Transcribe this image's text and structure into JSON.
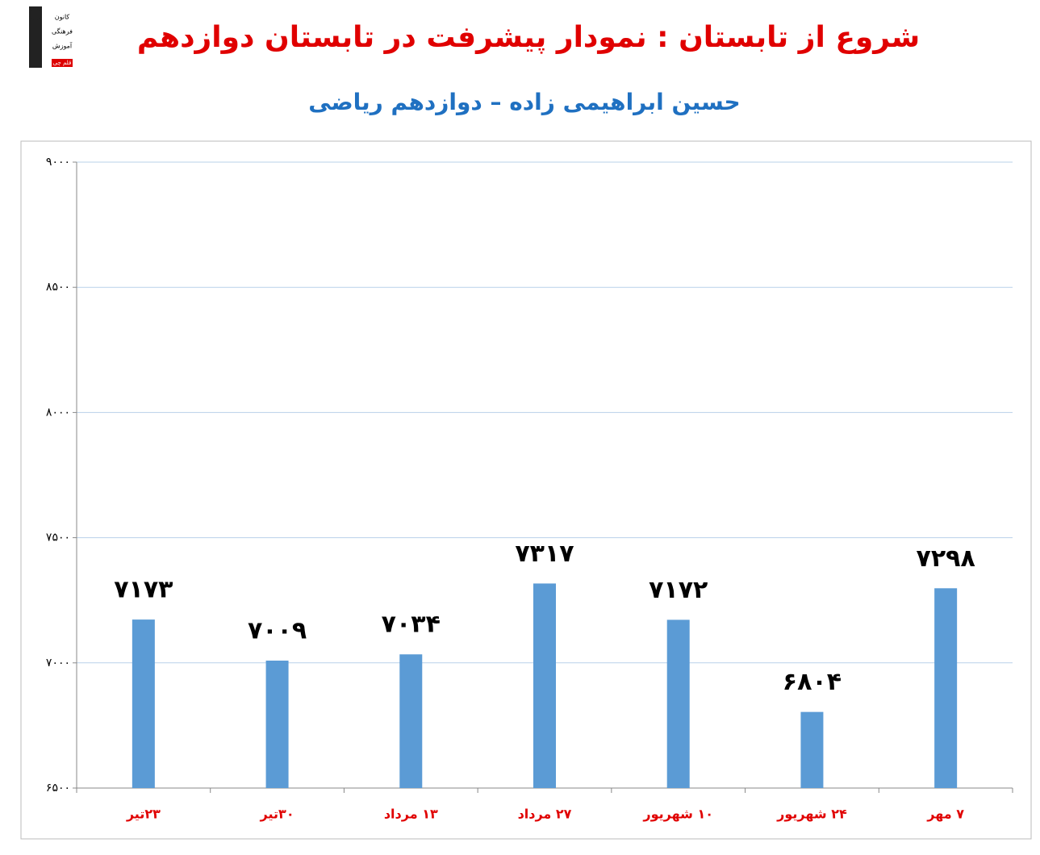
{
  "logo": {
    "lines": [
      "کانون",
      "فرهنگی",
      "آموزش",
      "قلم چی"
    ]
  },
  "chart_data": {
    "type": "bar",
    "title": "شروع از تابستان : نمودار پیشرفت در تابستان دوازدهم",
    "subtitle": "حسین ابراهیمی زاده – دوازدهم ریاضی",
    "categories": [
      "۲۳تیر",
      "۳۰تیر",
      "۱۳ مرداد",
      "۲۷ مرداد",
      "۱۰ شهریور",
      "۲۴ شهریور",
      "۷ مهر"
    ],
    "values": [
      7173,
      7009,
      7034,
      7317,
      7172,
      6804,
      7298
    ],
    "value_labels": [
      "۷۱۷۳",
      "۷۰۰۹",
      "۷۰۳۴",
      "۷۳۱۷",
      "۷۱۷۲",
      "۶۸۰۴",
      "۷۲۹۸"
    ],
    "color": "#5b9bd5",
    "ylim": [
      6500,
      9000
    ],
    "yticks": [
      {
        "value": 6500,
        "label": "۶۵۰۰"
      },
      {
        "value": 7000,
        "label": "۷۰۰۰"
      },
      {
        "value": 7500,
        "label": "۷۵۰۰"
      },
      {
        "value": 8000,
        "label": "۸۰۰۰"
      },
      {
        "value": 8500,
        "label": "۸۵۰۰"
      },
      {
        "value": 9000,
        "label": "۹۰۰۰"
      }
    ],
    "grid": true
  }
}
